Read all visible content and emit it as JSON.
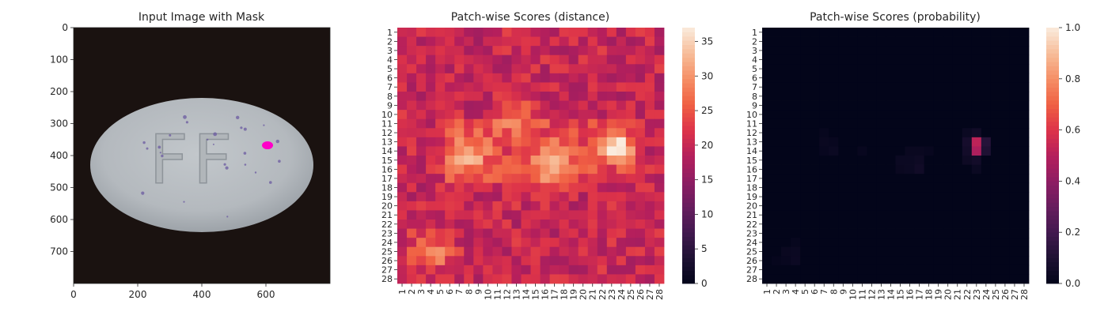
{
  "chart_data": [
    {
      "type": "image",
      "title": "Input Image with Mask",
      "x_ticks": [
        "0",
        "200",
        "400",
        "600"
      ],
      "y_ticks": [
        "0",
        "100",
        "200",
        "300",
        "400",
        "500",
        "600",
        "700"
      ],
      "x_tick_values": [
        0,
        200,
        400,
        600
      ],
      "y_tick_values": [
        0,
        100,
        200,
        300,
        400,
        500,
        600,
        700
      ],
      "xlim": [
        0,
        800
      ],
      "ylim": [
        800,
        0
      ],
      "embossed_text": "FF",
      "mask_center": [
        605,
        368
      ],
      "mask_color": "#ff00c8"
    },
    {
      "type": "heatmap",
      "title": "Patch-wise Scores (distance)",
      "grid": [
        28,
        28
      ],
      "x_ticks": [
        "1",
        "2",
        "3",
        "4",
        "5",
        "6",
        "7",
        "8",
        "9",
        "10",
        "11",
        "12",
        "13",
        "14",
        "15",
        "16",
        "17",
        "18",
        "19",
        "20",
        "21",
        "22",
        "23",
        "24",
        "25",
        "26",
        "27",
        "28"
      ],
      "y_ticks": [
        "1",
        "2",
        "3",
        "4",
        "5",
        "6",
        "7",
        "8",
        "9",
        "10",
        "11",
        "12",
        "13",
        "14",
        "15",
        "16",
        "17",
        "18",
        "19",
        "20",
        "21",
        "22",
        "23",
        "24",
        "25",
        "26",
        "27",
        "28"
      ],
      "colorbar_ticks": [
        "0",
        "5",
        "10",
        "15",
        "20",
        "25",
        "30",
        "35"
      ],
      "colorbar_values": [
        0,
        5,
        10,
        15,
        20,
        25,
        30,
        35
      ],
      "vmin": 0,
      "vmax": 37,
      "colormap": "rocket",
      "base_value": 20,
      "hotspots": [
        {
          "row": 13.5,
          "col": 23.5,
          "value": 37
        },
        {
          "row": 14.5,
          "col": 8,
          "value": 29
        },
        {
          "row": 15.5,
          "col": 17,
          "value": 31
        },
        {
          "row": 10,
          "col": 13,
          "value": 27
        },
        {
          "row": 25,
          "col": 4,
          "value": 29
        }
      ]
    },
    {
      "type": "heatmap",
      "title": "Patch-wise Scores (probability)",
      "grid": [
        28,
        28
      ],
      "x_ticks": [
        "1",
        "2",
        "3",
        "4",
        "5",
        "6",
        "7",
        "8",
        "9",
        "10",
        "11",
        "12",
        "13",
        "14",
        "15",
        "16",
        "17",
        "18",
        "19",
        "20",
        "21",
        "22",
        "23",
        "24",
        "25",
        "26",
        "27",
        "28"
      ],
      "y_ticks": [
        "1",
        "2",
        "3",
        "4",
        "5",
        "6",
        "7",
        "8",
        "9",
        "10",
        "11",
        "12",
        "13",
        "14",
        "15",
        "16",
        "17",
        "18",
        "19",
        "20",
        "21",
        "22",
        "23",
        "24",
        "25",
        "26",
        "27",
        "28"
      ],
      "colorbar_ticks": [
        "0.0",
        "0.2",
        "0.4",
        "0.6",
        "0.8",
        "1.0"
      ],
      "colorbar_values": [
        0,
        0.2,
        0.4,
        0.6,
        0.8,
        1.0
      ],
      "vmin": 0,
      "vmax": 1,
      "colormap": "rocket",
      "cells": [
        {
          "row": 13,
          "col": 23,
          "value": 0.52
        },
        {
          "row": 14,
          "col": 23,
          "value": 0.48
        },
        {
          "row": 13,
          "col": 24,
          "value": 0.12
        },
        {
          "row": 14,
          "col": 24,
          "value": 0.1
        },
        {
          "row": 13,
          "col": 22,
          "value": 0.07
        },
        {
          "row": 14,
          "col": 22,
          "value": 0.06
        },
        {
          "row": 12,
          "col": 23,
          "value": 0.05
        },
        {
          "row": 15,
          "col": 23,
          "value": 0.06
        },
        {
          "row": 15,
          "col": 22,
          "value": 0.04
        },
        {
          "row": 16,
          "col": 23,
          "value": 0.03
        },
        {
          "row": 12,
          "col": 22,
          "value": 0.03
        },
        {
          "row": 16,
          "col": 17,
          "value": 0.05
        },
        {
          "row": 15,
          "col": 17,
          "value": 0.04
        },
        {
          "row": 16,
          "col": 16,
          "value": 0.03
        },
        {
          "row": 15,
          "col": 16,
          "value": 0.03
        },
        {
          "row": 16,
          "col": 15,
          "value": 0.025
        },
        {
          "row": 15,
          "col": 15,
          "value": 0.03
        },
        {
          "row": 14,
          "col": 16,
          "value": 0.025
        },
        {
          "row": 14,
          "col": 17,
          "value": 0.025
        },
        {
          "row": 14,
          "col": 18,
          "value": 0.02
        },
        {
          "row": 13,
          "col": 7,
          "value": 0.025
        },
        {
          "row": 13,
          "col": 8,
          "value": 0.02
        },
        {
          "row": 14,
          "col": 8,
          "value": 0.03
        },
        {
          "row": 14,
          "col": 7,
          "value": 0.02
        },
        {
          "row": 12,
          "col": 7,
          "value": 0.015
        },
        {
          "row": 14,
          "col": 11,
          "value": 0.02
        },
        {
          "row": 25,
          "col": 3,
          "value": 0.025
        },
        {
          "row": 25,
          "col": 4,
          "value": 0.03
        },
        {
          "row": 26,
          "col": 4,
          "value": 0.035
        },
        {
          "row": 26,
          "col": 3,
          "value": 0.02
        },
        {
          "row": 24,
          "col": 4,
          "value": 0.015
        },
        {
          "row": 26,
          "col": 2,
          "value": 0.012
        }
      ]
    }
  ]
}
